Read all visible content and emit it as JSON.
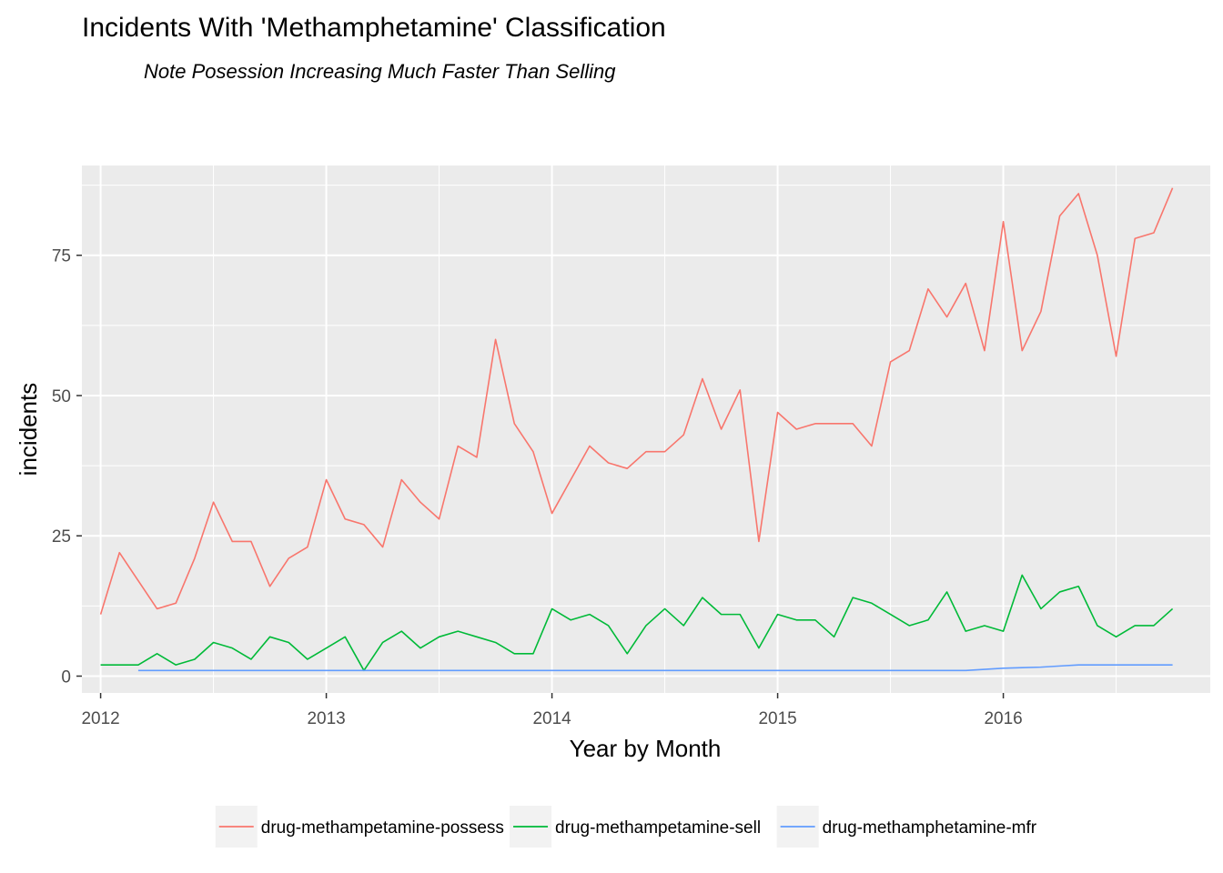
{
  "chart_data": {
    "type": "line",
    "title": "Incidents With 'Methamphetamine' Classification",
    "subtitle": "Note Posession Increasing Much Faster Than Selling",
    "xlabel": "Year by Month",
    "ylabel": "incidents",
    "xlim": [
      2011.917,
      2016.917
    ],
    "ylim": [
      -3,
      91
    ],
    "x_ticks": [
      {
        "value": 2012,
        "label": "2012"
      },
      {
        "value": 2013,
        "label": "2013"
      },
      {
        "value": 2014,
        "label": "2014"
      },
      {
        "value": 2015,
        "label": "2015"
      },
      {
        "value": 2016,
        "label": "2016"
      }
    ],
    "y_ticks": [
      {
        "value": 0,
        "label": "0"
      },
      {
        "value": 25,
        "label": "25"
      },
      {
        "value": 50,
        "label": "50"
      },
      {
        "value": 75,
        "label": "75"
      }
    ],
    "grid": true,
    "legend_position": "bottom",
    "series": [
      {
        "name": "drug-methampetamine-possess",
        "color": "#F8766D",
        "x_start": 2012.0,
        "x_step_months": 1,
        "values": [
          11,
          22,
          17,
          12,
          13,
          21,
          31,
          24,
          24,
          16,
          21,
          23,
          35,
          28,
          27,
          23,
          35,
          31,
          28,
          41,
          39,
          60,
          45,
          40,
          29,
          35,
          41,
          38,
          37,
          40,
          40,
          43,
          53,
          44,
          51,
          24,
          47,
          44,
          45,
          45,
          45,
          41,
          56,
          58,
          69,
          64,
          70,
          58,
          81,
          58,
          65,
          82,
          86,
          75,
          57,
          78,
          79,
          87
        ]
      },
      {
        "name": "drug-methampetamine-sell",
        "color": "#00BA38",
        "x_start": 2012.0,
        "x_step_months": 1,
        "values": [
          2,
          2,
          2,
          4,
          2,
          3,
          6,
          5,
          3,
          7,
          6,
          3,
          5,
          7,
          1,
          6,
          8,
          5,
          7,
          8,
          7,
          6,
          4,
          4,
          12,
          10,
          11,
          9,
          4,
          9,
          12,
          9,
          14,
          11,
          11,
          5,
          11,
          10,
          10,
          7,
          14,
          13,
          11,
          9,
          10,
          15,
          8,
          9,
          8,
          18,
          12,
          15,
          16,
          9,
          7,
          9,
          9,
          12
        ]
      },
      {
        "name": "drug-methamphetamine-mfr",
        "color": "#619CFF",
        "x_start": 2012.1667,
        "x_step_months": 1,
        "values": [
          1,
          1,
          1,
          1,
          1,
          1,
          1,
          1,
          1,
          1,
          1,
          1,
          1,
          1,
          1,
          1,
          1,
          1,
          1,
          1,
          1,
          1,
          1,
          1,
          1,
          1,
          1,
          1,
          1,
          1,
          1,
          1,
          1,
          1,
          1,
          1,
          1,
          1,
          1,
          1,
          1,
          1,
          1,
          1,
          1,
          1.2,
          1.4,
          1.5,
          1.6,
          1.8,
          2,
          2,
          2,
          2,
          2,
          2
        ]
      }
    ]
  }
}
